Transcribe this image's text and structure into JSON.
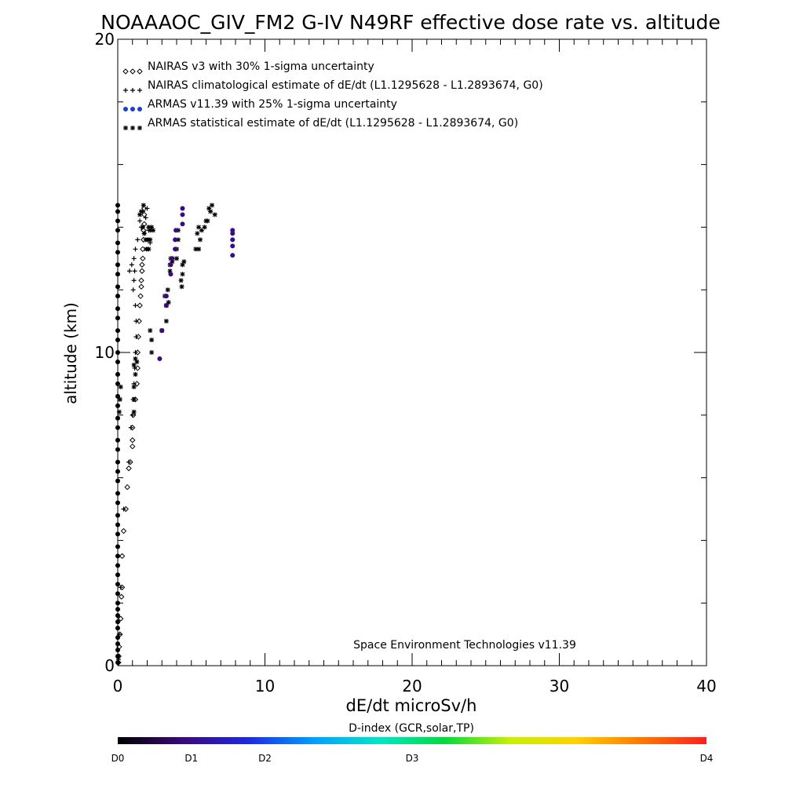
{
  "chart_data": {
    "type": "scatter",
    "title": "NOAAAOC_GIV_FM2 G-IV   N49RF  effective dose rate vs. altitude",
    "xlabel": "dE/dt microSv/h",
    "ylabel": "altitude (km)",
    "xlim": [
      0,
      40
    ],
    "ylim": [
      0,
      20
    ],
    "x_ticks": [
      "0",
      "10",
      "20",
      "30",
      "40"
    ],
    "y_ticks": [
      "0",
      "10",
      "20"
    ],
    "x_minor_step": 1,
    "y_minor_step": 2,
    "grid": false,
    "legend_position": "top-left",
    "legend": [
      {
        "marker": "diamond",
        "color": "#000000",
        "label": "NAIRAS v3 with 30% 1-sigma uncertainty"
      },
      {
        "marker": "plus",
        "color": "#000000",
        "label": "NAIRAS climatological estimate of dE/dt (L1.1295628 - L1.2893674, G0)"
      },
      {
        "marker": "dot",
        "color": "#1a3fd6",
        "label": "ARMAS v11.39 with 25% 1-sigma uncertainty"
      },
      {
        "marker": "asterisk",
        "color": "#000000",
        "label": "ARMAS statistical estimate of dE/dt (L1.1295628 - L1.2893674, G0)"
      }
    ],
    "annotation": "Space Environment Technologies v11.39",
    "colorbar": {
      "title": "D-index (GCR,solar,TP)",
      "ticks": [
        {
          "label": "D0",
          "value": 0
        },
        {
          "label": "D1",
          "value": 5
        },
        {
          "label": "D2",
          "value": 10
        },
        {
          "label": "D3",
          "value": 20
        },
        {
          "label": "D4",
          "value": 40
        }
      ],
      "stops": [
        "#000000",
        "#3a0a78",
        "#1e28e6",
        "#00a0ff",
        "#00e6c8",
        "#00dc3c",
        "#c8f000",
        "#ffd200",
        "#ff7800",
        "#ff1e1e"
      ]
    },
    "series": [
      {
        "name": "NAIRAS v3 with 30% 1-sigma uncertainty",
        "marker": "diamond",
        "color": "#000000",
        "points": [
          [
            0.05,
            0.1
          ],
          [
            0.07,
            0.3
          ],
          [
            0.1,
            0.6
          ],
          [
            0.15,
            1.0
          ],
          [
            0.2,
            1.5
          ],
          [
            0.25,
            2.2
          ],
          [
            0.3,
            2.5
          ],
          [
            0.3,
            3.5
          ],
          [
            0.4,
            4.3
          ],
          [
            0.55,
            5.0
          ],
          [
            0.65,
            5.7
          ],
          [
            0.75,
            6.3
          ],
          [
            0.85,
            6.5
          ],
          [
            1.0,
            7.0
          ],
          [
            1.0,
            7.2
          ],
          [
            1.0,
            7.6
          ],
          [
            1.05,
            8.0
          ],
          [
            1.2,
            8.5
          ],
          [
            1.3,
            9.0
          ],
          [
            1.35,
            9.5
          ],
          [
            1.35,
            10.0
          ],
          [
            1.4,
            10.5
          ],
          [
            1.45,
            11.0
          ],
          [
            1.5,
            11.5
          ],
          [
            1.55,
            11.8
          ],
          [
            1.6,
            12.1
          ],
          [
            1.6,
            12.3
          ],
          [
            1.65,
            12.6
          ],
          [
            1.65,
            12.8
          ],
          [
            1.7,
            13.0
          ],
          [
            1.7,
            13.3
          ],
          [
            1.75,
            13.6
          ],
          [
            1.75,
            13.9
          ],
          [
            1.8,
            14.1
          ],
          [
            1.8,
            14.4
          ],
          [
            1.8,
            14.6
          ]
        ]
      },
      {
        "name": "NAIRAS climatological estimate of dE/dt (L1.1295628 - L1.2893674, G0)",
        "marker": "plus",
        "color": "#000000",
        "points": [
          [
            0.05,
            0.2
          ],
          [
            0.1,
            1.0
          ],
          [
            0.2,
            2.5
          ],
          [
            0.4,
            5.0
          ],
          [
            0.75,
            6.5
          ],
          [
            0.9,
            7.6
          ],
          [
            1.0,
            8.0
          ],
          [
            1.05,
            8.5
          ],
          [
            1.1,
            9.0
          ],
          [
            1.15,
            9.5
          ],
          [
            1.2,
            10.0
          ],
          [
            1.25,
            10.5
          ],
          [
            1.25,
            11.0
          ],
          [
            1.2,
            11.5
          ],
          [
            1.05,
            12.0
          ],
          [
            1.1,
            12.3
          ],
          [
            1.15,
            12.6
          ],
          [
            0.95,
            12.8
          ],
          [
            0.8,
            12.6
          ],
          [
            1.1,
            13.0
          ],
          [
            1.2,
            13.3
          ],
          [
            1.35,
            13.6
          ],
          [
            1.6,
            14.0
          ],
          [
            1.9,
            14.3
          ],
          [
            2.0,
            14.6
          ],
          [
            2.1,
            13.9
          ],
          [
            2.2,
            13.5
          ],
          [
            1.8,
            13.8
          ],
          [
            1.5,
            14.2
          ],
          [
            1.7,
            14.5
          ]
        ]
      },
      {
        "name": "ARMAS statistical estimate of dE/dt (L1.1295628 - L1.2893674, G0)",
        "marker": "asterisk",
        "color": "#000000",
        "points": [
          [
            0.1,
            8.1
          ],
          [
            0.15,
            8.5
          ],
          [
            0.2,
            8.9
          ],
          [
            1.1,
            8.1
          ],
          [
            1.1,
            8.5
          ],
          [
            1.1,
            8.9
          ],
          [
            1.2,
            9.3
          ],
          [
            1.1,
            9.6
          ],
          [
            1.2,
            9.8
          ],
          [
            1.3,
            9.7
          ],
          [
            2.3,
            10.0
          ],
          [
            2.3,
            10.4
          ],
          [
            2.2,
            10.7
          ],
          [
            3.0,
            10.7
          ],
          [
            3.3,
            11.0
          ],
          [
            3.3,
            11.5
          ],
          [
            3.2,
            11.8
          ],
          [
            3.4,
            12.0
          ],
          [
            3.45,
            11.6
          ],
          [
            4.35,
            12.1
          ],
          [
            4.3,
            12.3
          ],
          [
            4.4,
            12.5
          ],
          [
            4.4,
            12.8
          ],
          [
            4.5,
            12.9
          ],
          [
            3.55,
            12.6
          ],
          [
            3.55,
            12.8
          ],
          [
            3.6,
            13.0
          ],
          [
            3.7,
            12.9
          ],
          [
            4.0,
            13.0
          ],
          [
            4.0,
            13.3
          ],
          [
            4.1,
            13.6
          ],
          [
            4.1,
            13.9
          ],
          [
            1.95,
            13.3
          ],
          [
            2.1,
            13.3
          ],
          [
            1.9,
            13.6
          ],
          [
            2.05,
            13.6
          ],
          [
            2.2,
            13.6
          ],
          [
            2.1,
            14.0
          ],
          [
            2.3,
            14.0
          ],
          [
            1.7,
            14.0
          ],
          [
            1.8,
            13.8
          ],
          [
            1.6,
            14.5
          ],
          [
            1.75,
            14.7
          ],
          [
            1.5,
            14.4
          ],
          [
            2.2,
            13.9
          ],
          [
            2.4,
            13.9
          ],
          [
            5.3,
            13.3
          ],
          [
            5.5,
            13.3
          ],
          [
            5.6,
            13.6
          ],
          [
            5.7,
            13.9
          ],
          [
            5.5,
            14.0
          ],
          [
            5.4,
            13.8
          ],
          [
            5.9,
            14.0
          ],
          [
            6.3,
            14.5
          ],
          [
            6.1,
            14.2
          ],
          [
            6.4,
            14.7
          ],
          [
            6.2,
            14.6
          ],
          [
            6.6,
            14.4
          ],
          [
            6.0,
            14.2
          ]
        ]
      },
      {
        "name": "ARMAS v11.39 with 25% 1-sigma uncertainty",
        "marker": "dot",
        "color_by_dindex": true,
        "points": [
          [
            0.0,
            0.1
          ],
          [
            0.0,
            0.3
          ],
          [
            0.0,
            0.5
          ],
          [
            0.0,
            0.7
          ],
          [
            0.0,
            0.9
          ],
          [
            0.0,
            1.2
          ],
          [
            0.0,
            1.4
          ],
          [
            0.0,
            1.6
          ],
          [
            0.0,
            1.8
          ],
          [
            0.0,
            2.0
          ],
          [
            0.0,
            2.3
          ],
          [
            0.0,
            2.6
          ],
          [
            0.0,
            2.9
          ],
          [
            0.0,
            3.2
          ],
          [
            0.0,
            3.5
          ],
          [
            0.0,
            3.8
          ],
          [
            0.0,
            4.2
          ],
          [
            0.0,
            4.5
          ],
          [
            0.0,
            4.8
          ],
          [
            0.0,
            5.2
          ],
          [
            0.0,
            5.5
          ],
          [
            0.0,
            5.9
          ],
          [
            0.0,
            6.2
          ],
          [
            0.0,
            6.5
          ],
          [
            0.0,
            6.9
          ],
          [
            0.0,
            7.2
          ],
          [
            0.0,
            7.6
          ],
          [
            0.0,
            7.9
          ],
          [
            0.0,
            8.3
          ],
          [
            0.0,
            8.6
          ],
          [
            0.0,
            9.0
          ],
          [
            0.0,
            9.3
          ],
          [
            0.0,
            9.7
          ],
          [
            0.0,
            10.0
          ],
          [
            0.0,
            10.4
          ],
          [
            0.0,
            10.7
          ],
          [
            0.0,
            11.1
          ],
          [
            0.0,
            11.4
          ],
          [
            0.0,
            11.8
          ],
          [
            0.0,
            12.1
          ],
          [
            0.0,
            12.5
          ],
          [
            0.0,
            12.8
          ],
          [
            0.0,
            13.2
          ],
          [
            0.0,
            13.5
          ],
          [
            0.0,
            13.9
          ],
          [
            0.0,
            14.2
          ],
          [
            0.0,
            14.5
          ],
          [
            0.0,
            14.7
          ],
          [
            2.85,
            9.8
          ],
          [
            3.0,
            10.7
          ],
          [
            3.3,
            11.5
          ],
          [
            3.3,
            11.8
          ],
          [
            3.6,
            12.5
          ],
          [
            3.6,
            12.8
          ],
          [
            3.7,
            13.0
          ],
          [
            3.9,
            13.3
          ],
          [
            3.9,
            13.6
          ],
          [
            3.95,
            13.9
          ],
          [
            4.4,
            14.1
          ],
          [
            4.4,
            14.4
          ],
          [
            4.4,
            14.6
          ],
          [
            7.8,
            13.1
          ],
          [
            7.8,
            13.4
          ],
          [
            7.8,
            13.6
          ],
          [
            7.8,
            13.8
          ],
          [
            7.8,
            13.9
          ]
        ]
      }
    ]
  }
}
